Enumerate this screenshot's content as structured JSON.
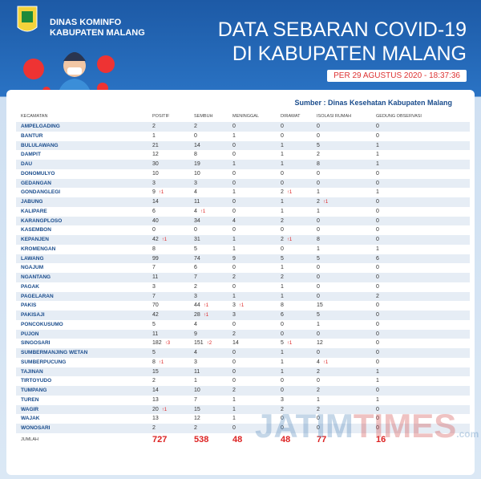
{
  "header": {
    "agency": [
      "DINAS KOMINFO",
      "KABUPATEN MALANG"
    ],
    "title": [
      "DATA SEBARAN COVID-19",
      "DI KABUPATEN MALANG"
    ],
    "date": "PER 29 AGUSTUS 2020 - 18:37:36"
  },
  "source": "Sumber : Dinas Kesehatan Kabupaten Malang",
  "table": {
    "columns": [
      "KECAMATAN",
      "POSITIF",
      "SEMBUH",
      "MENINGGAL",
      "DIRAWAT",
      "ISOLASI RUMAH",
      "GEDUNG OBSERVASI"
    ],
    "rows": [
      [
        "AMPELGADING",
        "2",
        "2",
        "0",
        "0",
        "0",
        "0"
      ],
      [
        "BANTUR",
        "1",
        "0",
        "1",
        "0",
        "0",
        "0"
      ],
      [
        "BULULAWANG",
        "21",
        "14",
        "0",
        "1",
        "5",
        "1"
      ],
      [
        "DAMPIT",
        "12",
        "8",
        "0",
        "1",
        "2",
        "1"
      ],
      [
        "DAU",
        "30",
        "19",
        "1",
        "1",
        "8",
        "1"
      ],
      [
        "DONOMULYO",
        "10",
        "10",
        "0",
        "0",
        "0",
        "0"
      ],
      [
        "GEDANGAN",
        "3",
        "3",
        "0",
        "0",
        "0",
        "0"
      ],
      [
        "GONDANGLEGI",
        [
          "9",
          "1"
        ],
        "4",
        "1",
        [
          "2",
          "1"
        ],
        "1",
        "1"
      ],
      [
        "JABUNG",
        "14",
        "11",
        "0",
        "1",
        [
          "2",
          "1"
        ],
        "0"
      ],
      [
        "KALIPARE",
        "6",
        [
          "4",
          "1"
        ],
        "0",
        "1",
        "1",
        "0"
      ],
      [
        "KARANGPLOSO",
        "40",
        "34",
        "4",
        "2",
        "0",
        "0"
      ],
      [
        "KASEMBON",
        "0",
        "0",
        "0",
        "0",
        "0",
        "0"
      ],
      [
        "KEPANJEN",
        [
          "42",
          "1"
        ],
        "31",
        "1",
        [
          "2",
          "1"
        ],
        "8",
        "0"
      ],
      [
        "KROMENGAN",
        "8",
        "5",
        "1",
        "0",
        "1",
        "1"
      ],
      [
        "LAWANG",
        "99",
        "74",
        "9",
        "5",
        "5",
        "6"
      ],
      [
        "NGAJUM",
        "7",
        "6",
        "0",
        "1",
        "0",
        "0"
      ],
      [
        "NGANTANG",
        "11",
        "7",
        "2",
        "2",
        "0",
        "0"
      ],
      [
        "PAGAK",
        "3",
        "2",
        "0",
        "1",
        "0",
        "0"
      ],
      [
        "PAGELARAN",
        "7",
        "3",
        "1",
        "1",
        "0",
        "2"
      ],
      [
        "PAKIS",
        "70",
        [
          "44",
          "1"
        ],
        [
          "3",
          "1"
        ],
        "8",
        "15",
        "0"
      ],
      [
        "PAKISAJI",
        "42",
        [
          "28",
          "1"
        ],
        "3",
        "6",
        "5",
        "0"
      ],
      [
        "PONCOKUSUMO",
        "5",
        "4",
        "0",
        "0",
        "1",
        "0"
      ],
      [
        "PUJON",
        "11",
        "9",
        "2",
        "0",
        "0",
        "0"
      ],
      [
        "SINGOSARI",
        [
          "182",
          "3"
        ],
        [
          "151",
          "2"
        ],
        "14",
        [
          "5",
          "1"
        ],
        "12",
        "0"
      ],
      [
        "SUMBERMANJING WETAN",
        "5",
        "4",
        "0",
        "1",
        "0",
        "0"
      ],
      [
        "SUMBERPUCUNG",
        [
          "8",
          "1"
        ],
        "3",
        "0",
        "1",
        [
          "4",
          "1"
        ],
        "0"
      ],
      [
        "TAJINAN",
        "15",
        "11",
        "0",
        "1",
        "2",
        "1"
      ],
      [
        "TIRTOYUDO",
        "2",
        "1",
        "0",
        "0",
        "0",
        "1"
      ],
      [
        "TUMPANG",
        "14",
        "10",
        "2",
        "0",
        "2",
        "0"
      ],
      [
        "TUREN",
        "13",
        "7",
        "1",
        "3",
        "1",
        "1"
      ],
      [
        "WAGIR",
        [
          "20",
          "1"
        ],
        "15",
        "1",
        "2",
        "2",
        "0"
      ],
      [
        "WAJAK",
        "13",
        "12",
        "1",
        "0",
        "0",
        "0"
      ],
      [
        "WONOSARI",
        "2",
        "2",
        "0",
        "0",
        "0",
        "0"
      ]
    ],
    "total": [
      "JUMLAH",
      "727",
      "538",
      "48",
      "48",
      "77",
      "16"
    ]
  },
  "watermark": [
    "JATIM",
    "TIMES",
    ".com"
  ]
}
